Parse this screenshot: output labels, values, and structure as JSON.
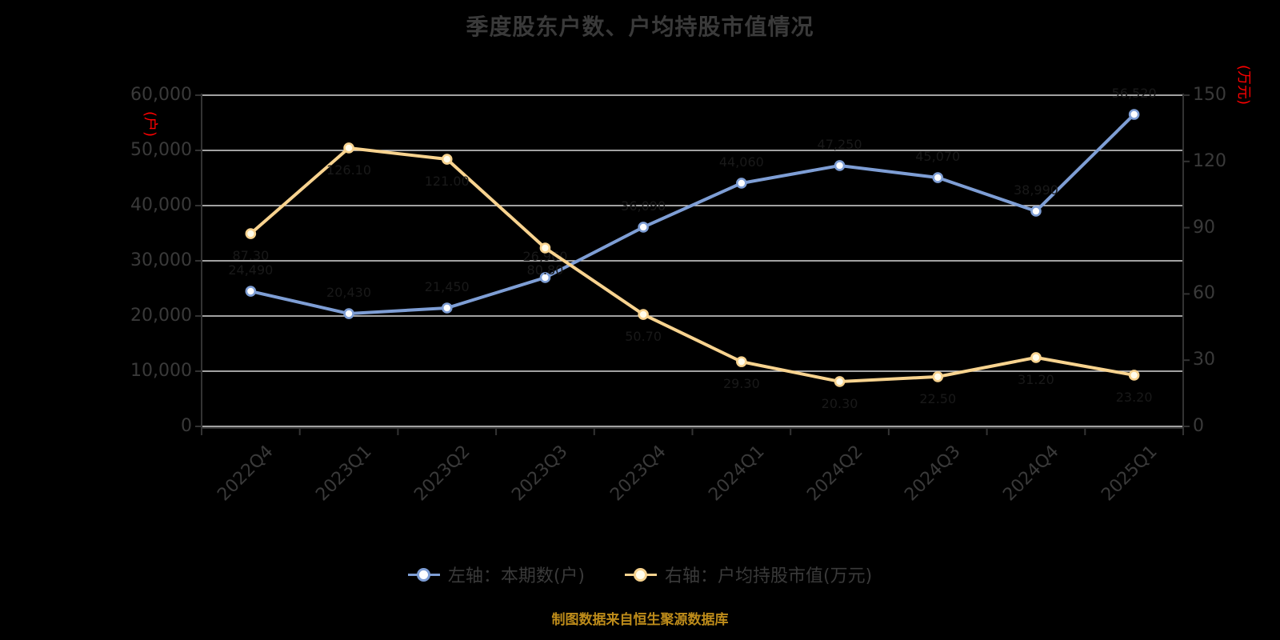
{
  "title": "季度股东户数、户均持股市值情况",
  "footer": "制图数据来自恒生聚源数据库",
  "left_axis": {
    "unit": "(户)",
    "ticks": [
      "60,000",
      "50,000",
      "40,000",
      "30,000",
      "20,000",
      "10,000",
      "0"
    ],
    "min": 0,
    "max": 60000,
    "interval": 10000
  },
  "right_axis": {
    "unit": "(万元)",
    "ticks": [
      "150",
      "120",
      "90",
      "60",
      "30",
      "0"
    ],
    "min": 0,
    "max": 150,
    "interval": 30
  },
  "legend": [
    {
      "label": "左轴：本期数(户)",
      "marker": "line-circle-marker",
      "color": "#7E9ED5"
    },
    {
      "label": "右轴：户均持股市值(万元)",
      "marker": "line-circle-marker",
      "color": "#F8D38F"
    }
  ],
  "colors": {
    "background": "#000000",
    "grid": "#D8D8D8",
    "axis_line": "#333333",
    "text": "#3A3A3A",
    "unit_text": "#FF0000",
    "footer_text": "#BE8C1A",
    "point_label": "#191919",
    "series1": "#7E9ED5",
    "series1_marker_fill": "#FFFFFF",
    "series2": "#F8D38F",
    "series2_marker_fill": "#FFFCEB"
  },
  "chart_data": {
    "type": "line",
    "categories": [
      "2022Q4",
      "2023Q1",
      "2023Q2",
      "2023Q3",
      "2023Q4",
      "2024Q1",
      "2024Q2",
      "2024Q3",
      "2024Q4",
      "2025Q1"
    ],
    "series": [
      {
        "name": "左轴：本期数(户)",
        "axis": "left",
        "color": "#7E9ED5",
        "values": [
          24490,
          20430,
          21450,
          26960,
          36090,
          44060,
          47250,
          45070,
          38990,
          56520
        ]
      },
      {
        "name": "右轴：户均持股市值(万元)",
        "axis": "right",
        "color": "#F8D38F",
        "values": [
          87.3,
          126.1,
          121.0,
          80.8,
          50.7,
          29.3,
          20.3,
          22.5,
          31.2,
          23.2
        ]
      }
    ],
    "left_ylim": [
      0,
      60000
    ],
    "right_ylim": [
      0,
      150
    ],
    "grid": true,
    "legend_position": "bottom",
    "x_label_rotation": 45
  }
}
